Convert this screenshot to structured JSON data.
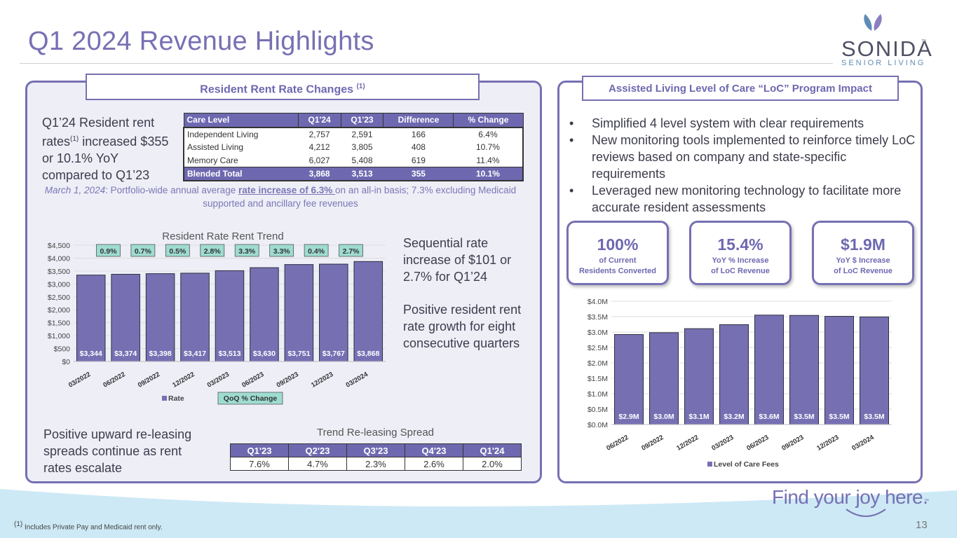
{
  "header": {
    "title": "Q1 2024 Revenue Highlights"
  },
  "logo": {
    "name": "SONIDA",
    "tm": "™",
    "sub": "SENIOR LIVING"
  },
  "left_panel": {
    "title": "Resident Rent Rate Changes",
    "title_sup": "(1)",
    "rent_text_a": "Q1’24 Resident rent rates",
    "rent_text_sup": "(1)",
    "rent_text_b": " increased $355 or 10.1% YoY compared to Q1’23",
    "rate_table": {
      "headers": [
        "Care Level",
        "Q1'24",
        "Q1'23",
        "Difference",
        "% Change"
      ],
      "rows": [
        [
          "Independent Living",
          "2,757",
          "2,591",
          "166",
          "6.4%"
        ],
        [
          "Assisted Living",
          "4,212",
          "3,805",
          "408",
          "10.7%"
        ],
        [
          "Memory Care",
          "6,027",
          "5,408",
          "619",
          "11.4%"
        ]
      ],
      "total": [
        "Blended Total",
        "3,868",
        "3,513",
        "355",
        "10.1%"
      ]
    },
    "march_note": {
      "date": "March 1, 2024",
      "a": ": Portfolio-wide annual average ",
      "u": "rate increase of 6.3% ",
      "b": "on an all-in basis; 7.3% excluding Medicaid supported and ancillary fee revenues"
    },
    "seq_text": "Sequential rate increase of $101 or 2.7% for Q1’24",
    "pos_text": "Positive resident rent rate growth for eight consecutive quarters",
    "releasing_text": "Positive upward re-leasing spreads continue as rent rates escalate",
    "releasing_caption": "Trend Re-leasing Spread",
    "releasing_table": {
      "headers": [
        "Q1'23",
        "Q2'23",
        "Q3'23",
        "Q4'23",
        "Q1'24"
      ],
      "values": [
        "7.6%",
        "4.7%",
        "2.3%",
        "2.6%",
        "2.0%"
      ]
    }
  },
  "right_panel": {
    "title": "Assisted Living Level of Care “LoC” Program Impact",
    "bullets": [
      "Simplified 4 level system with clear requirements",
      "New monitoring tools implemented to reinforce timely LoC reviews based on company and state-specific requirements",
      "Leveraged new monitoring technology to facilitate more accurate resident assessments"
    ],
    "kpis": [
      {
        "value": "100%",
        "label1": "of Current",
        "label2": "Residents Converted"
      },
      {
        "value": "15.4%",
        "label1": "YoY % Increase",
        "label2": "of LoC Revenue"
      },
      {
        "value": "$1.9M",
        "label1": "YoY $ Increase",
        "label2": "of LoC Revenue"
      }
    ]
  },
  "chart_data": [
    {
      "type": "bar",
      "title": "Resident Rate Rent Trend",
      "categories": [
        "03/2022",
        "06/2022",
        "09/2022",
        "12/2022",
        "03/2023",
        "06/2023",
        "09/2023",
        "12/2023",
        "03/2024"
      ],
      "values": [
        3344,
        3374,
        3398,
        3417,
        3513,
        3630,
        3751,
        3767,
        3868
      ],
      "value_labels": [
        "$3,344",
        "$3,374",
        "$3,398",
        "$3,417",
        "$3,513",
        "$3,630",
        "$3,751",
        "$3,767",
        "$3,868"
      ],
      "qoq_change": [
        "0.9%",
        "0.7%",
        "0.5%",
        "2.8%",
        "3.3%",
        "3.3%",
        "0.4%",
        "2.7%"
      ],
      "yticks": [
        "$0",
        "$500",
        "$1,000",
        "$1,500",
        "$2,000",
        "$2,500",
        "$3,000",
        "$3,500",
        "$4,000",
        "$4,500"
      ],
      "ylim": [
        0,
        4500
      ],
      "legend": [
        "Rate",
        "QoQ % Change"
      ],
      "xlabel": "",
      "ylabel": ""
    },
    {
      "type": "bar",
      "title": "",
      "categories": [
        "06/2022",
        "09/2022",
        "12/2022",
        "03/2023",
        "06/2023",
        "09/2023",
        "12/2023",
        "03/2024"
      ],
      "values": [
        2.92,
        2.98,
        3.11,
        3.24,
        3.55,
        3.54,
        3.51,
        3.49
      ],
      "value_labels": [
        "$2.9M",
        "$3.0M",
        "$3.1M",
        "$3.2M",
        "$3.6M",
        "$3.5M",
        "$3.5M",
        "$3.5M"
      ],
      "yticks": [
        "$0.0M",
        "$0.5M",
        "$1.0M",
        "$1.5M",
        "$2.0M",
        "$2.5M",
        "$3.0M",
        "$3.5M",
        "$4.0M"
      ],
      "ylim": [
        0,
        4.0
      ],
      "legend": [
        "Level of Care Fees"
      ],
      "xlabel": "",
      "ylabel": ""
    }
  ],
  "footer": {
    "footnote_sup": "(1)",
    "footnote": " Includes Private Pay and Medicaid rent only.",
    "tagline": "Find your joy here.",
    "tagline_tm": "™",
    "page": "13"
  },
  "colors": {
    "accent": "#7670b3",
    "bar": "#7670b3",
    "qoq_box": "#9edcd0",
    "wave": "#cce8f4"
  }
}
